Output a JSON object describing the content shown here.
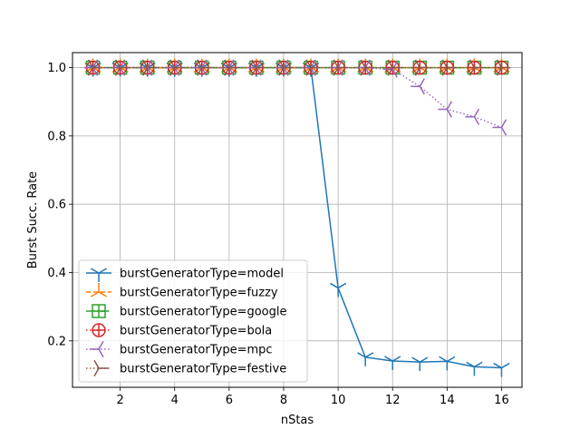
{
  "chart_data": {
    "type": "line",
    "title": "",
    "xlabel": "nStas",
    "ylabel": "Burst Succ. Rate",
    "xlim": [
      0.25,
      16.75
    ],
    "ylim": [
      0.064,
      1.044
    ],
    "xticks": [
      2,
      4,
      6,
      8,
      10,
      12,
      14,
      16
    ],
    "xtick_labels": [
      "2",
      "4",
      "6",
      "8",
      "10",
      "12",
      "14",
      "16"
    ],
    "yticks": [
      0.2,
      0.4,
      0.6,
      0.8,
      1.0
    ],
    "ytick_labels": [
      "0.2",
      "0.4",
      "0.6",
      "0.8",
      "1.0"
    ],
    "grid": true,
    "legend_position": "lower-left",
    "x": [
      1,
      2,
      3,
      4,
      5,
      6,
      7,
      8,
      9,
      10,
      11,
      12,
      13,
      14,
      15,
      16
    ],
    "series": [
      {
        "name": "burstGeneratorType=model",
        "color": "#1f77b4",
        "linestyle": "solid",
        "marker": "tri_down",
        "values": [
          1.0,
          1.0,
          1.0,
          1.0,
          1.0,
          1.0,
          1.0,
          1.0,
          1.0,
          0.355,
          0.152,
          0.141,
          0.138,
          0.14,
          0.124,
          0.121
        ]
      },
      {
        "name": "burstGeneratorType=fuzzy",
        "color": "#ff7f0e",
        "linestyle": "dashed",
        "marker": "tri_up",
        "values": [
          1.0,
          1.0,
          1.0,
          1.0,
          1.0,
          1.0,
          1.0,
          1.0,
          1.0,
          1.0,
          1.0,
          1.0,
          1.0,
          1.0,
          1.0,
          1.0
        ]
      },
      {
        "name": "burstGeneratorType=google",
        "color": "#2ca02c",
        "linestyle": "dashdot",
        "marker": "square_plus",
        "values": [
          1.0,
          1.0,
          1.0,
          1.0,
          1.0,
          1.0,
          1.0,
          1.0,
          1.0,
          1.0,
          1.0,
          1.0,
          1.0,
          1.0,
          1.0,
          1.0
        ]
      },
      {
        "name": "burstGeneratorType=bola",
        "color": "#d62728",
        "linestyle": "dotted",
        "marker": "circle_plus",
        "values": [
          1.0,
          1.0,
          1.0,
          1.0,
          1.0,
          1.0,
          1.0,
          1.0,
          1.0,
          1.0,
          1.0,
          1.0,
          1.0,
          1.0,
          1.0,
          1.0
        ]
      },
      {
        "name": "burstGeneratorType=mpc",
        "color": "#9467bd",
        "linestyle": "dotted",
        "marker": "tri_left",
        "values": [
          1.0,
          1.0,
          1.0,
          1.0,
          1.0,
          1.0,
          1.0,
          1.0,
          1.0,
          1.0,
          1.0,
          0.995,
          0.945,
          0.878,
          0.856,
          0.825
        ]
      },
      {
        "name": "burstGeneratorType=festive",
        "color": "#8c564b",
        "linestyle": "dotted",
        "marker": "tri_right",
        "values": [
          1.0,
          1.0,
          1.0,
          1.0,
          1.0,
          1.0,
          1.0,
          1.0,
          1.0,
          1.0,
          1.0,
          1.0,
          1.0,
          1.0,
          1.0,
          1.0
        ]
      }
    ]
  }
}
